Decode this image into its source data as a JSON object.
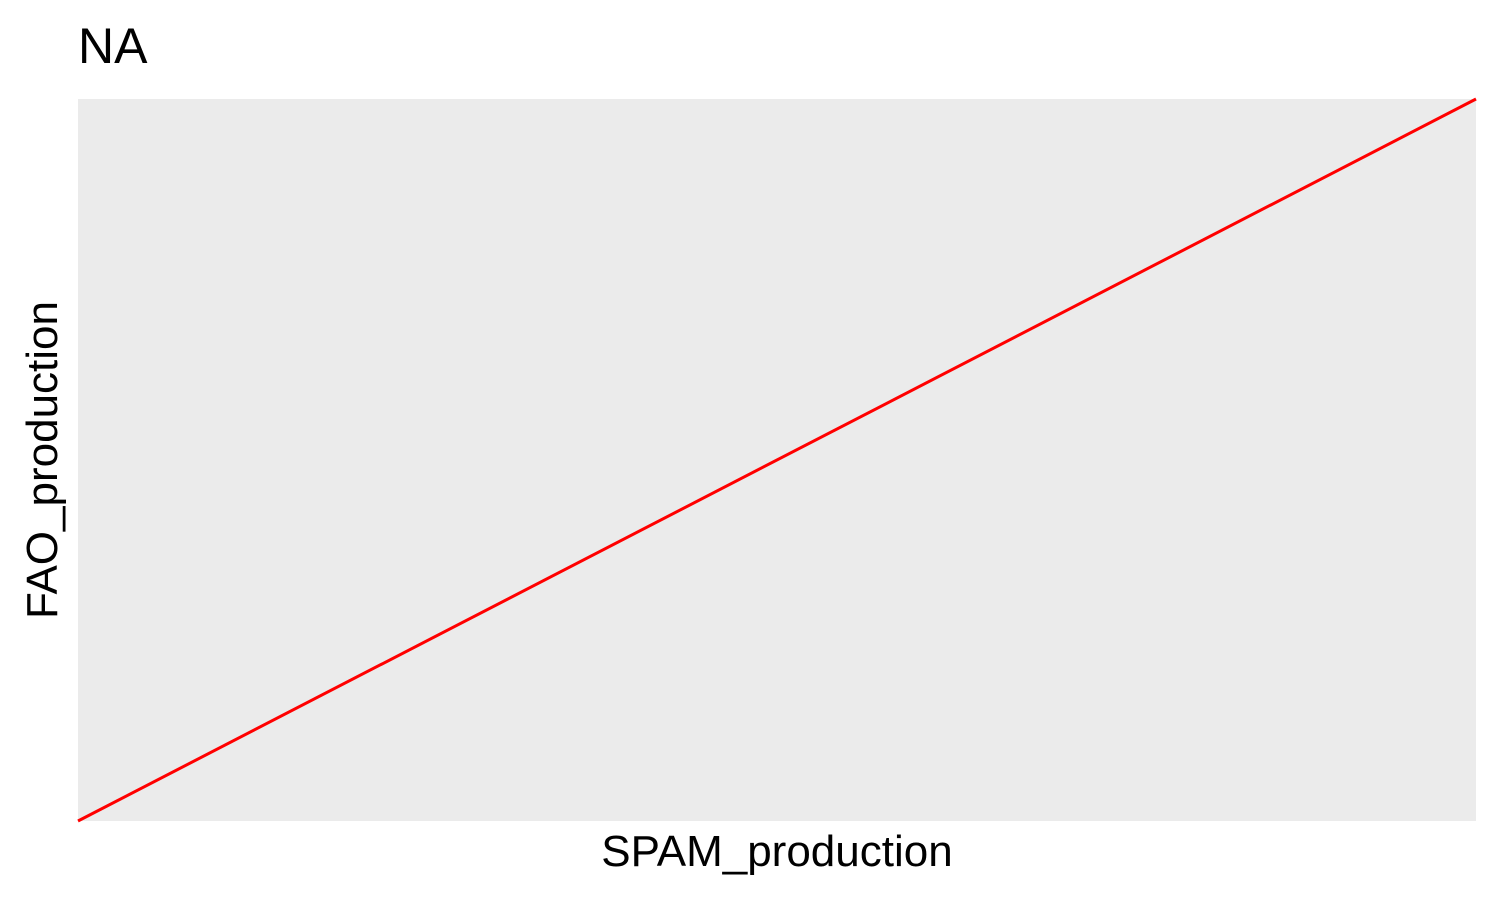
{
  "chart_data": {
    "type": "line",
    "title": "NA",
    "xlabel": "SPAM_production",
    "ylabel": "FAO_production",
    "grid": false,
    "xlim": [
      0,
      1
    ],
    "ylim": [
      0,
      1
    ],
    "series": [
      {
        "x": [
          0,
          1
        ],
        "y": [
          0,
          1
        ],
        "color": "#ff0000"
      }
    ]
  },
  "colors": {
    "panel_background": "#ebebeb",
    "line": "#ff0000",
    "text": "#000000"
  }
}
